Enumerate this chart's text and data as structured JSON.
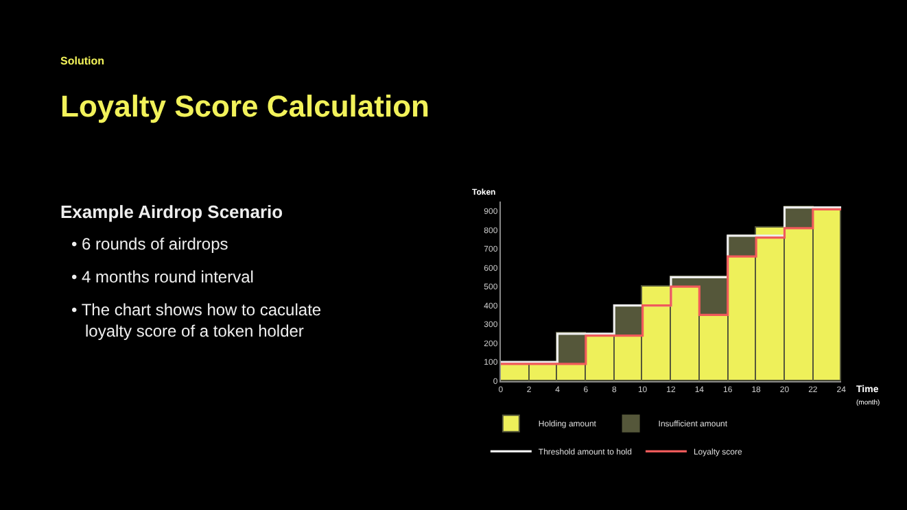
{
  "chart_data": {
    "type": "bar",
    "stacked": true,
    "title": "Loyalty Score Calculation",
    "xlabel": "Time\n(month)",
    "ylabel": "Token",
    "x": [
      1,
      3,
      5,
      7,
      9,
      11,
      13,
      15,
      17,
      19,
      21,
      23
    ],
    "series": [
      {
        "name": "Holding amount",
        "color": "#eef05a",
        "values": [
          90,
          90,
          90,
          240,
          240,
          500,
          500,
          350,
          660,
          810,
          810,
          910
        ]
      },
      {
        "name": "Insufficient amount",
        "color": "#55573a",
        "values": [
          null,
          null,
          160,
          null,
          160,
          null,
          50,
          200,
          110,
          null,
          110,
          null
        ]
      },
      {
        "name": "Threshold amount to hold",
        "type": "step",
        "color": "#eeeeee",
        "x": [
          0,
          2,
          4,
          6,
          8,
          10,
          12,
          14,
          16,
          18,
          20,
          22,
          24
        ],
        "values": [
          100,
          100,
          250,
          250,
          400,
          400,
          550,
          550,
          770,
          770,
          920,
          920,
          920
        ]
      },
      {
        "name": "Loyalty score",
        "type": "step",
        "color": "#f05a5a",
        "x": [
          0,
          2,
          4,
          6,
          8,
          10,
          12,
          14,
          16,
          18,
          20,
          22,
          24
        ],
        "values": [
          90,
          90,
          90,
          240,
          240,
          400,
          500,
          350,
          660,
          760,
          810,
          910,
          910
        ]
      }
    ],
    "xlim": [
      0,
      24
    ],
    "xticks": [
      0,
      2,
      4,
      6,
      8,
      10,
      12,
      14,
      16,
      18,
      20,
      22,
      24
    ],
    "ylim": [
      0,
      950
    ],
    "yticks": [
      0,
      100,
      200,
      300,
      400,
      500,
      600,
      700,
      800,
      900
    ],
    "grid": false,
    "legend": "bottom",
    "marker": "none",
    "annotations": [
      "Solution",
      "Example Airdrop Scenario",
      "• 6 rounds of airdrops",
      "• 4 months round interval",
      "• The chart shows how to caculate\nloyalty score of a token holder"
    ]
  }
}
